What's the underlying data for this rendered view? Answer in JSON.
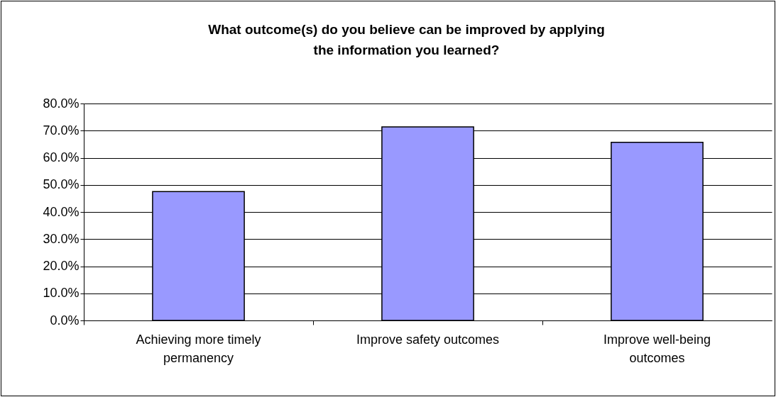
{
  "chart_data": {
    "type": "bar",
    "title": "What outcome(s) do you believe can be improved by applying\nthe information you learned?",
    "categories": [
      "Achieving more timely permanency",
      "Improve safety outcomes",
      "Improve well-being outcomes"
    ],
    "values": [
      47.5,
      71.4,
      65.7
    ],
    "color": "#9999ff",
    "ylim": [
      0,
      80
    ],
    "yticks": [
      {
        "value": 0,
        "label": "0.0%"
      },
      {
        "value": 10,
        "label": "10.0%"
      },
      {
        "value": 20,
        "label": "20.0%"
      },
      {
        "value": 30,
        "label": "30.0%"
      },
      {
        "value": 40,
        "label": "40.0%"
      },
      {
        "value": 50,
        "label": "50.0%"
      },
      {
        "value": 60,
        "label": "60.0%"
      },
      {
        "value": 70,
        "label": "70.0%"
      },
      {
        "value": 80,
        "label": "80.0%"
      }
    ],
    "grid": "y"
  }
}
